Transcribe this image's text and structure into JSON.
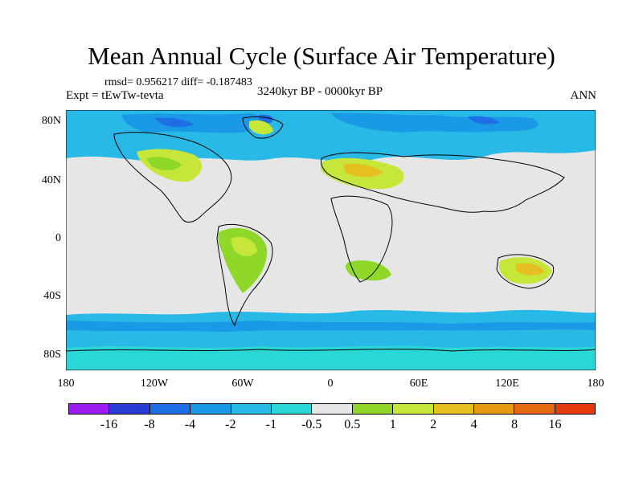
{
  "title": "Mean Annual Cycle (Surface Air Temperature)",
  "stats": "rmsd= 0.956217 diff= -0.187483",
  "experiment": "Expt = tEwTw-tevta",
  "period": "3240kyr BP - 0000kyr BP",
  "season": "ANN",
  "map": {
    "lat_labels": [
      "80N",
      "40N",
      "0",
      "40S",
      "80S"
    ],
    "lon_labels": [
      "180",
      "120W",
      "60W",
      "0",
      "60E",
      "120E",
      "180"
    ]
  },
  "colorbar": {
    "colors": [
      "#9a1cf0",
      "#2b3bd6",
      "#1e6ee6",
      "#1a9ae6",
      "#29b9e6",
      "#2ad6d6",
      "#e6e6e6",
      "#8fd82a",
      "#c7e63a",
      "#e6c020",
      "#e69a10",
      "#e66a10",
      "#e63a0a"
    ],
    "labels": [
      "-16",
      "-8",
      "-4",
      "-2",
      "-1",
      "-0.5",
      "0.5",
      "1",
      "2",
      "4",
      "8",
      "16"
    ]
  }
}
